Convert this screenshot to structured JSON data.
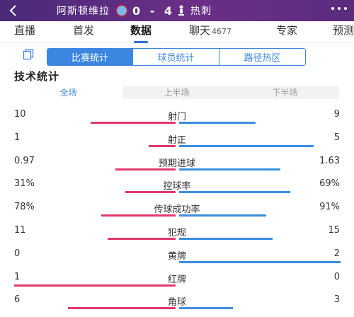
{
  "header": {
    "home_team": "阿斯顿维拉",
    "score": "0 - 4",
    "away_team": "热刺"
  },
  "tabs": [
    {
      "label": "直播"
    },
    {
      "label": "首发"
    },
    {
      "label": "数据",
      "active": true
    },
    {
      "label": "聊天",
      "count": "4677"
    },
    {
      "label": "专家"
    },
    {
      "label": "预测"
    }
  ],
  "sub_tabs": [
    "比赛统计",
    "球员统计",
    "路径热区"
  ],
  "section_title": "技术统计",
  "periods": [
    "全场",
    "上半场",
    "下半场"
  ],
  "colors": {
    "home": "#e0396c",
    "away": "#3a8fe0",
    "accent": "#3a86e0",
    "header": "#5a2c7e"
  },
  "stats": [
    {
      "name": "射门",
      "home": "10",
      "away": "9",
      "home_share": 0.526,
      "away_share": 0.474
    },
    {
      "name": "射正",
      "home": "1",
      "away": "5",
      "home_share": 0.167,
      "away_share": 0.833
    },
    {
      "name": "预期进球",
      "home": "0.97",
      "away": "1.63",
      "home_share": 0.373,
      "away_share": 0.627
    },
    {
      "name": "控球率",
      "home": "31%",
      "away": "69%",
      "home_share": 0.31,
      "away_share": 0.69
    },
    {
      "name": "传球成功率",
      "home": "78%",
      "away": "91%",
      "home_share": 0.462,
      "away_share": 0.538
    },
    {
      "name": "犯规",
      "home": "11",
      "away": "15",
      "home_share": 0.423,
      "away_share": 0.577
    },
    {
      "name": "黄牌",
      "home": "0",
      "away": "2",
      "home_share": 0.0,
      "away_share": 1.0
    },
    {
      "name": "红牌",
      "home": "1",
      "away": "0",
      "home_share": 1.0,
      "away_share": 0.0
    },
    {
      "name": "角球",
      "home": "6",
      "away": "3",
      "home_share": 0.667,
      "away_share": 0.333
    }
  ]
}
